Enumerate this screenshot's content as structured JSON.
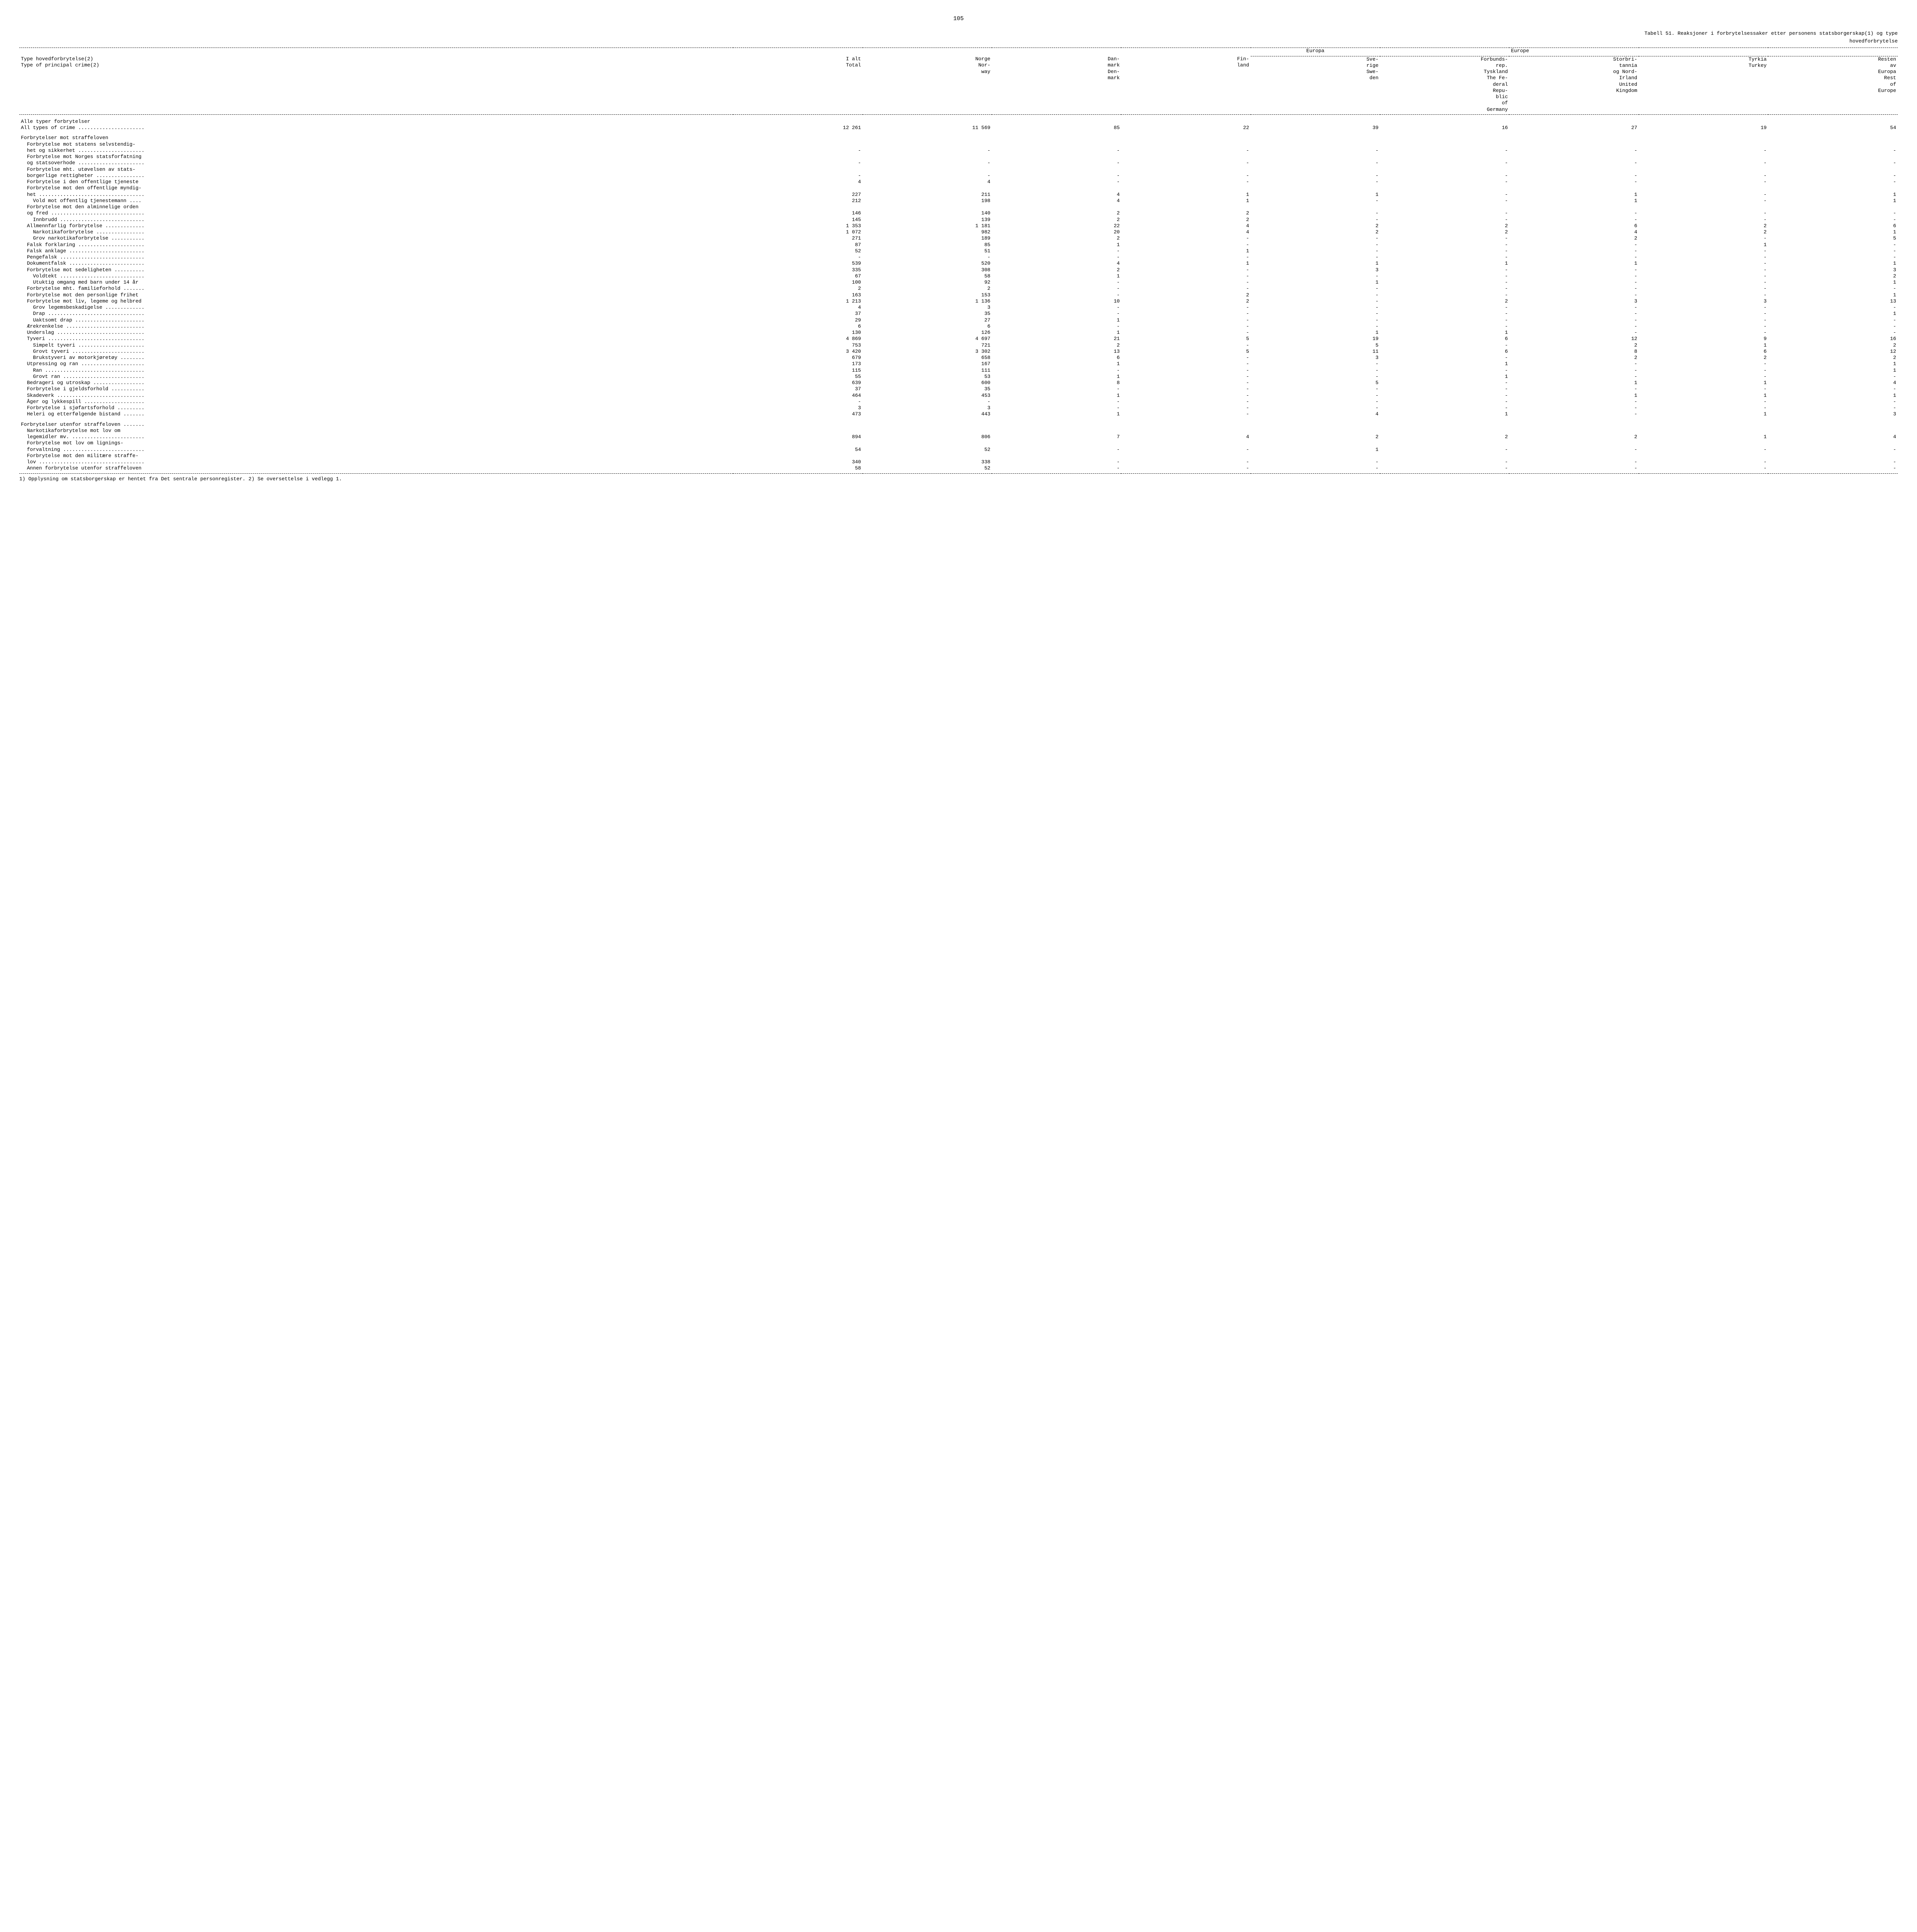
{
  "page_number": "105",
  "title_line1": "Tabell 51. Reaksjoner i forbrytelsessaker etter personens statsborgerskap(1) og type",
  "title_line2": "hovedforbrytelse",
  "group_headers": {
    "europa_no": "Europa",
    "europa_en": "Europe"
  },
  "columns": {
    "type_no": "Type hovedforbrytelse(2)",
    "type_en": "Type of principal crime(2)",
    "total": "I alt\nTotal",
    "norway": "Norge\nNor-\nway",
    "denmark": "Dan-\nmark\nDen-\nmark",
    "finland": "Fin-\nland",
    "sweden": "Sve-\nrige\nSwe-\nden",
    "germany": "Forbunds-\nrep.\nTyskland\nThe Fe-\nderal\nRepu-\nblic\nof\nGermany",
    "uk": "Storbri-\ntannia\nog Nord-\nIrland\nUnited\nKingdom",
    "turkey": "Tyrkia\nTurkey",
    "rest": "Resten\nav\nEuropa\nRest\nof\nEurope"
  },
  "rows": [
    {
      "label": "Alle typer forbrytelser",
      "cells": [
        "",
        "",
        "",
        "",
        "",
        "",
        "",
        "",
        ""
      ]
    },
    {
      "label": "All types of crime ......................",
      "cells": [
        "12 261",
        "11 569",
        "85",
        "22",
        "39",
        "16",
        "27",
        "19",
        "54"
      ]
    },
    {
      "label": "",
      "cells": [
        "",
        "",
        "",
        "",
        "",
        "",
        "",
        "",
        ""
      ],
      "spacer": true
    },
    {
      "label": "Forbrytelser mot straffeloven",
      "cells": [
        "",
        "",
        "",
        "",
        "",
        "",
        "",
        "",
        ""
      ]
    },
    {
      "label": "  Forbrytelse mot statens selvstendig-",
      "cells": [
        "",
        "",
        "",
        "",
        "",
        "",
        "",
        "",
        ""
      ]
    },
    {
      "label": "  het og sikkerhet ......................",
      "cells": [
        "-",
        "-",
        "-",
        "-",
        "-",
        "-",
        "-",
        "-",
        "-"
      ]
    },
    {
      "label": "  Forbrytelse mot Norges statsforfatning",
      "cells": [
        "",
        "",
        "",
        "",
        "",
        "",
        "",
        "",
        ""
      ]
    },
    {
      "label": "  og statsoverhode ......................",
      "cells": [
        "-",
        "-",
        "-",
        "-",
        "-",
        "-",
        "-",
        "-",
        "-"
      ]
    },
    {
      "label": "  Forbrytelse mht. utøvelsen av stats-",
      "cells": [
        "",
        "",
        "",
        "",
        "",
        "",
        "",
        "",
        ""
      ]
    },
    {
      "label": "  borgerlige rettigheter ................",
      "cells": [
        "-",
        "-",
        "-",
        "-",
        "-",
        "-",
        "-",
        "-",
        "-"
      ]
    },
    {
      "label": "  Forbrytelse i den offentlige tjeneste",
      "cells": [
        "4",
        "4",
        "-",
        "-",
        "-",
        "-",
        "-",
        "-",
        "-"
      ]
    },
    {
      "label": "  Forbrytelse mot den offentlige myndig-",
      "cells": [
        "",
        "",
        "",
        "",
        "",
        "",
        "",
        "",
        ""
      ]
    },
    {
      "label": "  het ...................................",
      "cells": [
        "227",
        "211",
        "4",
        "1",
        "1",
        "-",
        "1",
        "-",
        "1"
      ]
    },
    {
      "label": "    Vold mot offentlig tjenestemann ....",
      "cells": [
        "212",
        "198",
        "4",
        "1",
        "-",
        "-",
        "1",
        "-",
        "1"
      ]
    },
    {
      "label": "  Forbrytelse mot den alminnelige orden",
      "cells": [
        "",
        "",
        "",
        "",
        "",
        "",
        "",
        "",
        ""
      ]
    },
    {
      "label": "  og fred ...............................",
      "cells": [
        "146",
        "140",
        "2",
        "2",
        "-",
        "-",
        "-",
        "-",
        "-"
      ]
    },
    {
      "label": "    Innbrudd ............................",
      "cells": [
        "145",
        "139",
        "2",
        "2",
        "-",
        "-",
        "-",
        "-",
        "-"
      ]
    },
    {
      "label": "  Allmennfarlig forbrytelse .............",
      "cells": [
        "1 353",
        "1 181",
        "22",
        "4",
        "2",
        "2",
        "6",
        "2",
        "6"
      ]
    },
    {
      "label": "    Narkotikaforbrytelse ................",
      "cells": [
        "1 072",
        "982",
        "20",
        "4",
        "2",
        "2",
        "4",
        "2",
        "1"
      ]
    },
    {
      "label": "    Grov narkotikaforbrytelse ...........",
      "cells": [
        "271",
        "189",
        "2",
        "-",
        "-",
        "-",
        "2",
        "-",
        "5"
      ]
    },
    {
      "label": "  Falsk forklaring ......................",
      "cells": [
        "87",
        "85",
        "1",
        "-",
        "-",
        "-",
        "-",
        "1",
        "-"
      ]
    },
    {
      "label": "  Falsk anklage .........................",
      "cells": [
        "52",
        "51",
        "-",
        "1",
        "-",
        "-",
        "-",
        "-",
        "-"
      ]
    },
    {
      "label": "  Pengefalsk ............................",
      "cells": [
        "-",
        "-",
        "-",
        "-",
        "-",
        "-",
        "-",
        "-",
        "-"
      ]
    },
    {
      "label": "  Dokumentfalsk .........................",
      "cells": [
        "539",
        "520",
        "4",
        "1",
        "1",
        "1",
        "1",
        "-",
        "1"
      ]
    },
    {
      "label": "  Forbrytelse mot sedeligheten ..........",
      "cells": [
        "335",
        "308",
        "2",
        "-",
        "3",
        "-",
        "-",
        "-",
        "3"
      ]
    },
    {
      "label": "    Voldtekt ............................",
      "cells": [
        "67",
        "58",
        "1",
        "-",
        "-",
        "-",
        "-",
        "-",
        "2"
      ]
    },
    {
      "label": "    Utuktig omgang med barn under 14 år",
      "cells": [
        "100",
        "92",
        "-",
        "-",
        "1",
        "-",
        "-",
        "-",
        "1"
      ]
    },
    {
      "label": "  Forbrytelse mht. familieforhold .......",
      "cells": [
        "2",
        "2",
        "-",
        "-",
        "-",
        "-",
        "-",
        "-",
        "-"
      ]
    },
    {
      "label": "  Forbrytelse mot den personlige frihet",
      "cells": [
        "163",
        "153",
        "-",
        "2",
        "-",
        "-",
        "-",
        "-",
        "1"
      ]
    },
    {
      "label": "  Forbrytelse mot liv, legeme og helbred",
      "cells": [
        "1 213",
        "1 136",
        "10",
        "2",
        "-",
        "2",
        "3",
        "3",
        "13"
      ]
    },
    {
      "label": "    Grov legemsbeskadigelse .............",
      "cells": [
        "4",
        "3",
        "-",
        "-",
        "-",
        "-",
        "-",
        "-",
        "-"
      ]
    },
    {
      "label": "    Drap ................................",
      "cells": [
        "37",
        "35",
        "-",
        "-",
        "-",
        "-",
        "-",
        "-",
        "1"
      ]
    },
    {
      "label": "    Uaktsomt drap .......................",
      "cells": [
        "29",
        "27",
        "1",
        "-",
        "-",
        "-",
        "-",
        "-",
        "-"
      ]
    },
    {
      "label": "  Ærekrenkelse ..........................",
      "cells": [
        "6",
        "6",
        "-",
        "-",
        "-",
        "-",
        "-",
        "-",
        "-"
      ]
    },
    {
      "label": "  Underslag .............................",
      "cells": [
        "130",
        "126",
        "1",
        "-",
        "1",
        "1",
        "-",
        "-",
        "-"
      ]
    },
    {
      "label": "  Tyveri ................................",
      "cells": [
        "4 869",
        "4 697",
        "21",
        "5",
        "19",
        "6",
        "12",
        "9",
        "16"
      ]
    },
    {
      "label": "    Simpelt tyveri ......................",
      "cells": [
        "753",
        "721",
        "2",
        "-",
        "5",
        "-",
        "2",
        "1",
        "2"
      ]
    },
    {
      "label": "    Grovt tyveri ........................",
      "cells": [
        "3 420",
        "3 302",
        "13",
        "5",
        "11",
        "6",
        "8",
        "6",
        "12"
      ]
    },
    {
      "label": "    Brukstyveri av motorkjøretøy ........",
      "cells": [
        "679",
        "658",
        "6",
        "-",
        "3",
        "-",
        "2",
        "2",
        "2"
      ]
    },
    {
      "label": "  Utpressing og ran .....................",
      "cells": [
        "173",
        "167",
        "1",
        "-",
        "-",
        "1",
        "-",
        "-",
        "1"
      ]
    },
    {
      "label": "    Ran .................................",
      "cells": [
        "115",
        "111",
        "-",
        "-",
        "-",
        "-",
        "-",
        "-",
        "1"
      ]
    },
    {
      "label": "    Grovt ran ...........................",
      "cells": [
        "55",
        "53",
        "1",
        "-",
        "-",
        "1",
        "-",
        "-",
        "-"
      ]
    },
    {
      "label": "  Bedrageri og utroskap .................",
      "cells": [
        "639",
        "600",
        "8",
        "-",
        "5",
        "-",
        "1",
        "1",
        "4"
      ]
    },
    {
      "label": "  Forbrytelse i gjeldsforhold ...........",
      "cells": [
        "37",
        "35",
        "-",
        "-",
        "-",
        "-",
        "-",
        "-",
        "-"
      ]
    },
    {
      "label": "  Skadeverk .............................",
      "cells": [
        "464",
        "453",
        "1",
        "-",
        "-",
        "-",
        "1",
        "1",
        "1"
      ]
    },
    {
      "label": "  Åger og lykkespill ....................",
      "cells": [
        "-",
        "-",
        "-",
        "-",
        "-",
        "-",
        "-",
        "-",
        "-"
      ]
    },
    {
      "label": "  Forbrytelse i sjøfartsforhold .........",
      "cells": [
        "3",
        "3",
        "-",
        "-",
        "-",
        "-",
        "-",
        "-",
        "-"
      ]
    },
    {
      "label": "  Heleri og etterfølgende bistand .......",
      "cells": [
        "473",
        "443",
        "1",
        "-",
        "4",
        "1",
        "-",
        "1",
        "3"
      ]
    },
    {
      "label": "",
      "cells": [
        "",
        "",
        "",
        "",
        "",
        "",
        "",
        "",
        ""
      ],
      "spacer": true
    },
    {
      "label": "Forbrytelser utenfor straffeloven .......",
      "cells": [
        "",
        "",
        "",
        "",
        "",
        "",
        "",
        "",
        ""
      ]
    },
    {
      "label": "  Narkotikaforbrytelse mot lov om",
      "cells": [
        "",
        "",
        "",
        "",
        "",
        "",
        "",
        "",
        ""
      ]
    },
    {
      "label": "  legemidler mv. ........................",
      "cells": [
        "894",
        "806",
        "7",
        "4",
        "2",
        "2",
        "2",
        "1",
        "4"
      ]
    },
    {
      "label": "  Forbrytelse mot lov om lignings-",
      "cells": [
        "",
        "",
        "",
        "",
        "",
        "",
        "",
        "",
        ""
      ]
    },
    {
      "label": "  forvaltning ...........................",
      "cells": [
        "54",
        "52",
        "-",
        "-",
        "1",
        "-",
        "-",
        "-",
        "-"
      ]
    },
    {
      "label": "  Forbrytelse mot den militære straffe-",
      "cells": [
        "",
        "",
        "",
        "",
        "",
        "",
        "",
        "",
        ""
      ]
    },
    {
      "label": "  lov ...................................",
      "cells": [
        "340",
        "338",
        "-",
        "-",
        "-",
        "-",
        "-",
        "-",
        "-"
      ]
    },
    {
      "label": "  Annen forbrytelse utenfor straffeloven",
      "cells": [
        "58",
        "52",
        "-",
        "-",
        "-",
        "-",
        "-",
        "-",
        "-"
      ]
    }
  ],
  "footnote": "1) Opplysning om statsborgerskap er hentet fra Det sentrale personregister.  2) Se oversettelse i vedlegg 1."
}
